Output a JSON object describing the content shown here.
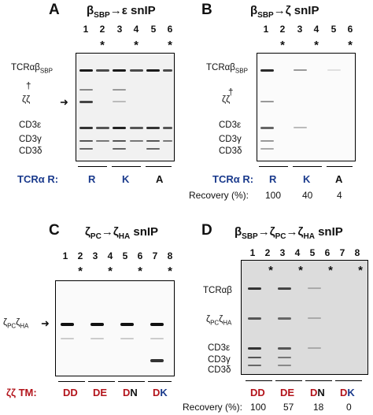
{
  "panels": {
    "A": {
      "label": "A",
      "title_main": "β",
      "title_sub": "SBP",
      "title_rest": "→ε snIP",
      "lanes": [
        "1",
        "2",
        "3",
        "4",
        "5",
        "6"
      ],
      "stars": [
        "*",
        "*",
        "*"
      ],
      "band_labels": {
        "tcr_main": "TCRαβ",
        "tcr_sub": "SBP",
        "dagger": "†",
        "zz": "ζζ",
        "cd3e": "CD3ε",
        "cd3g": "CD3γ",
        "cd3d": "CD3δ"
      },
      "row_label": "TCRα R:",
      "groups": [
        "R",
        "K",
        "A"
      ]
    },
    "B": {
      "label": "B",
      "title_main": "β",
      "title_sub": "SBP",
      "title_rest": "→ζ snIP",
      "lanes": [
        "1",
        "2",
        "3",
        "4",
        "5",
        "6"
      ],
      "stars": [
        "*",
        "*",
        "*"
      ],
      "band_labels": {
        "tcr_main": "TCRαβ",
        "tcr_sub": "SBP",
        "dagger": "†",
        "zz": "ζζ",
        "cd3e": "CD3ε",
        "cd3g": "CD3γ",
        "cd3d": "CD3δ"
      },
      "row_label": "TCRα R:",
      "groups": [
        "R",
        "K",
        "A"
      ],
      "recovery_label": "Recovery (%):",
      "recovery": [
        "100",
        "40",
        "4"
      ]
    },
    "C": {
      "label": "C",
      "title_main": "ζ",
      "title_sub": "PC",
      "title_rest": "→ζ",
      "title_sub2": "HA",
      "title_end": " snIP",
      "lanes": [
        "1",
        "2",
        "3",
        "4",
        "5",
        "6",
        "7",
        "8"
      ],
      "stars": [
        "*",
        "*",
        "*",
        "*"
      ],
      "band_labels": {
        "zpc": "ζ",
        "zpc_sub": "PC",
        "zha": "ζ",
        "zha_sub": "HA"
      },
      "row_label": "ζζ TM:",
      "groups": [
        {
          "first": "D",
          "second": "D"
        },
        {
          "first": "D",
          "second": "E"
        },
        {
          "first": "D",
          "second": "N"
        },
        {
          "first": "D",
          "second": "K"
        }
      ]
    },
    "D": {
      "label": "D",
      "title_main": "β",
      "title_sub": "SBP",
      "title_mid": "→ζ",
      "title_sub2": "PC",
      "title_mid2": "→ζ",
      "title_sub3": "HA",
      "title_end": " snIP",
      "lanes": [
        "1",
        "2",
        "3",
        "4",
        "5",
        "6",
        "7",
        "8"
      ],
      "stars": [
        "*",
        "*",
        "*",
        "*"
      ],
      "band_labels": {
        "tcr": "TCRαβ",
        "zpc": "ζ",
        "zpc_sub": "PC",
        "zha": "ζ",
        "zha_sub": "HA",
        "cd3e": "CD3ε",
        "cd3g": "CD3γ",
        "cd3d": "CD3δ"
      },
      "groups": [
        {
          "first": "D",
          "second": "D"
        },
        {
          "first": "D",
          "second": "E"
        },
        {
          "first": "D",
          "second": "N"
        },
        {
          "first": "D",
          "second": "K"
        }
      ],
      "recovery_label": "Recovery (%):",
      "recovery": [
        "100",
        "57",
        "18",
        "0"
      ]
    }
  },
  "colors": {
    "blue": "#1a3a8c",
    "red": "#b3141b",
    "navy": "#1a3a8c"
  }
}
